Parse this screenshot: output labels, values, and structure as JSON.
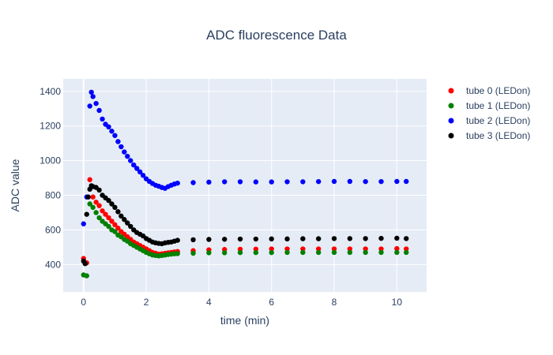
{
  "chart_data": {
    "type": "scatter",
    "title": "ADC fluorescence Data",
    "xlabel": "time (min)",
    "ylabel": "ADC value",
    "xlim": [
      -0.65,
      10.95
    ],
    "ylim": [
      242,
      1472
    ],
    "xticks": [
      0,
      2,
      4,
      6,
      8,
      10
    ],
    "yticks": [
      400,
      600,
      800,
      1000,
      1200,
      1400
    ],
    "grid": true,
    "legend_position": "top-right",
    "plot_background": "#e5ecf6",
    "series": [
      {
        "name": "tube 0 (LEDon)",
        "color": "#ff0000",
        "x": [
          0.0,
          0.1,
          0.2,
          0.3,
          0.4,
          0.5,
          0.6,
          0.7,
          0.8,
          0.9,
          1.0,
          1.1,
          1.2,
          1.3,
          1.4,
          1.5,
          1.6,
          1.7,
          1.8,
          1.9,
          2.0,
          2.1,
          2.2,
          2.3,
          2.4,
          2.5,
          2.6,
          2.7,
          2.8,
          2.9,
          3.0,
          3.5,
          4.0,
          4.5,
          5.0,
          5.5,
          6.0,
          6.5,
          7.0,
          7.5,
          8.0,
          8.5,
          9.0,
          9.5,
          10.0,
          10.3
        ],
        "y": [
          435,
          410,
          890,
          790,
          760,
          740,
          710,
          690,
          670,
          650,
          630,
          610,
          590,
          575,
          560,
          545,
          530,
          520,
          510,
          500,
          490,
          480,
          470,
          465,
          460,
          462,
          465,
          468,
          470,
          473,
          475,
          480,
          485,
          487,
          488,
          489,
          490,
          490,
          490,
          490,
          490,
          490,
          490,
          490,
          492,
          490
        ]
      },
      {
        "name": "tube 1 (LEDon)",
        "color": "#008000",
        "x": [
          0.0,
          0.1,
          0.2,
          0.3,
          0.4,
          0.5,
          0.6,
          0.7,
          0.8,
          0.9,
          1.0,
          1.1,
          1.2,
          1.3,
          1.4,
          1.5,
          1.6,
          1.7,
          1.8,
          1.9,
          2.0,
          2.1,
          2.2,
          2.3,
          2.4,
          2.5,
          2.6,
          2.7,
          2.8,
          2.9,
          3.0,
          3.5,
          4.0,
          4.5,
          5.0,
          5.5,
          6.0,
          6.5,
          7.0,
          7.5,
          8.0,
          8.5,
          9.0,
          9.5,
          10.0,
          10.3
        ],
        "y": [
          340,
          335,
          750,
          730,
          700,
          670,
          650,
          635,
          620,
          600,
          590,
          570,
          560,
          545,
          535,
          520,
          510,
          500,
          490,
          480,
          470,
          462,
          455,
          452,
          450,
          452,
          455,
          458,
          460,
          462,
          463,
          465,
          468,
          468,
          469,
          469,
          469,
          470,
          470,
          470,
          470,
          470,
          470,
          470,
          470,
          470
        ]
      },
      {
        "name": "tube 2 (LEDon)",
        "color": "#0000ff",
        "x": [
          0.0,
          0.1,
          0.2,
          0.25,
          0.3,
          0.4,
          0.5,
          0.6,
          0.7,
          0.8,
          0.9,
          1.0,
          1.1,
          1.2,
          1.3,
          1.4,
          1.5,
          1.6,
          1.7,
          1.8,
          1.9,
          2.0,
          2.1,
          2.2,
          2.3,
          2.4,
          2.5,
          2.6,
          2.7,
          2.8,
          2.9,
          3.0,
          3.5,
          4.0,
          4.5,
          5.0,
          5.5,
          6.0,
          6.5,
          7.0,
          7.5,
          8.0,
          8.5,
          9.0,
          9.5,
          10.0,
          10.3
        ],
        "y": [
          635,
          790,
          1315,
          1395,
          1370,
          1330,
          1290,
          1240,
          1210,
          1195,
          1170,
          1145,
          1110,
          1080,
          1050,
          1025,
          1000,
          975,
          955,
          935,
          915,
          895,
          880,
          868,
          858,
          852,
          845,
          840,
          850,
          858,
          865,
          870,
          873,
          876,
          878,
          878,
          877,
          877,
          878,
          878,
          879,
          880,
          880,
          879,
          879,
          880,
          880
        ]
      },
      {
        "name": "tube 3 (LEDon)",
        "color": "#000000",
        "x": [
          0.0,
          0.05,
          0.1,
          0.15,
          0.2,
          0.25,
          0.3,
          0.4,
          0.5,
          0.6,
          0.7,
          0.8,
          0.9,
          1.0,
          1.1,
          1.2,
          1.3,
          1.4,
          1.5,
          1.6,
          1.7,
          1.8,
          1.9,
          2.0,
          2.1,
          2.2,
          2.3,
          2.4,
          2.5,
          2.6,
          2.7,
          2.8,
          2.9,
          3.0,
          3.5,
          4.0,
          4.5,
          5.0,
          5.5,
          6.0,
          6.5,
          7.0,
          7.5,
          8.0,
          8.5,
          9.0,
          9.5,
          10.0,
          10.3
        ],
        "y": [
          420,
          405,
          690,
          790,
          835,
          855,
          850,
          845,
          830,
          800,
          785,
          770,
          750,
          730,
          705,
          680,
          660,
          640,
          620,
          600,
          585,
          575,
          565,
          550,
          540,
          530,
          525,
          522,
          520,
          525,
          528,
          530,
          535,
          540,
          543,
          545,
          546,
          547,
          547,
          548,
          548,
          549,
          549,
          550,
          550,
          550,
          551,
          552,
          550
        ]
      }
    ]
  }
}
